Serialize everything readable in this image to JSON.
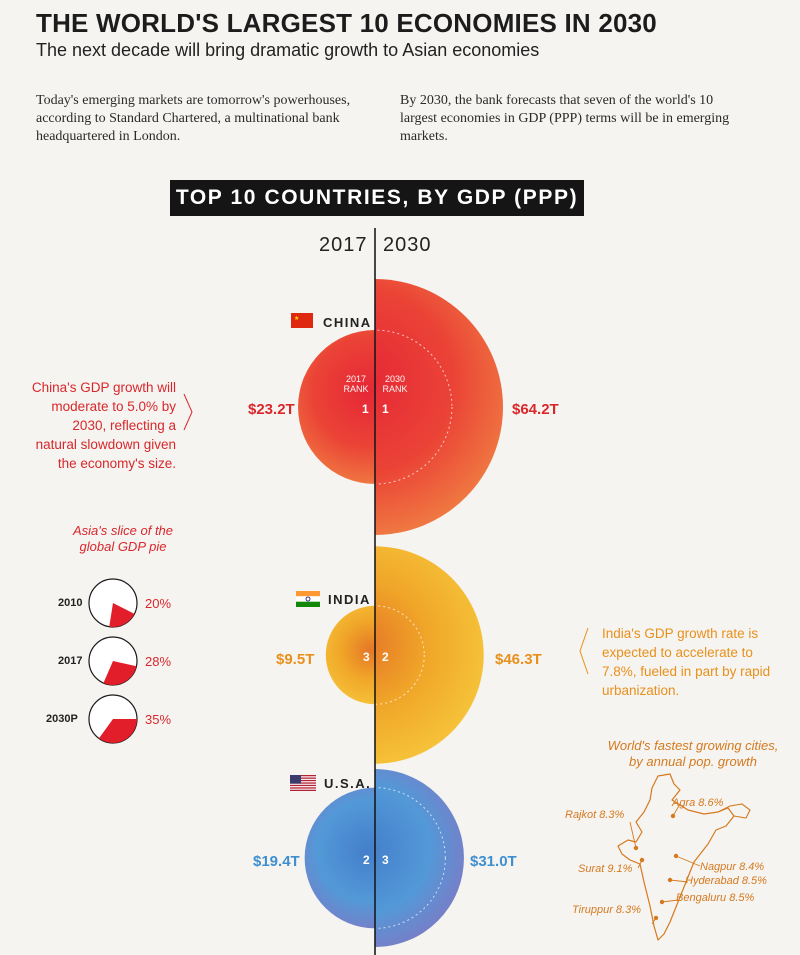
{
  "header": {
    "title": "THE WORLD'S LARGEST 10 ECONOMIES IN 2030",
    "subtitle": "The next decade will bring dramatic growth to Asian economies",
    "intro_left": "Today's emerging markets are tomorrow's powerhouses, according to Standard Chartered, a multinational bank headquartered in London.",
    "intro_right": "By 2030, the bank forecasts that seven of the world's 10 largest economies in GDP (PPP) terms will be in emerging markets."
  },
  "colors": {
    "china": "#e8352b",
    "india": "#f2a91c",
    "usa": "#4a8fd1",
    "accent_red": "#d8282c",
    "accent_orange": "#e8901c",
    "accent_blue": "#3e8fd0"
  },
  "chart_data": {
    "type": "bubble",
    "title": "TOP 10 COUNTRIES, BY GDP (PPP)",
    "years": [
      "2017",
      "2030"
    ],
    "unit": "trillion USD",
    "countries": [
      {
        "name": "CHINA",
        "gdp_2017": 23.2,
        "gdp_2030": 64.2,
        "label_2017": "$23.2T",
        "label_2030": "$64.2T",
        "rank_2017": "1",
        "rank_2030": "1",
        "flag": "china-flag-icon"
      },
      {
        "name": "INDIA",
        "gdp_2017": 9.5,
        "gdp_2030": 46.3,
        "label_2017": "$9.5T",
        "label_2030": "$46.3T",
        "rank_2017": "3",
        "rank_2030": "2",
        "flag": "india-flag-icon"
      },
      {
        "name": "U.S.A.",
        "gdp_2017": 19.4,
        "gdp_2030": 31.0,
        "label_2017": "$19.4T",
        "label_2030": "$31.0T",
        "rank_2017": "2",
        "rank_2030": "3",
        "flag": "usa-flag-icon"
      }
    ],
    "rank_labels": {
      "r2017": "2017 RANK",
      "r2030": "2030 RANK"
    }
  },
  "china_note": "China's GDP growth will moderate to 5.0% by 2030, reflecting a natural slowdown given the economy's size.",
  "india_note": "India's GDP growth rate is expected to accelerate to 7.8%, fueled in part by rapid urbanization.",
  "asia_pie": {
    "title": "Asia's slice of the global GDP pie",
    "items": [
      {
        "year": "2010",
        "pct": 20,
        "label": "20%"
      },
      {
        "year": "2017",
        "pct": 28,
        "label": "28%"
      },
      {
        "year": "2030P",
        "pct": 35,
        "label": "35%"
      }
    ]
  },
  "cities": {
    "title": "World's fastest growing cities, by annual pop. growth",
    "items": [
      {
        "name": "Agra 8.6%"
      },
      {
        "name": "Rajkot 8.3%"
      },
      {
        "name": "Nagpur 8.4%"
      },
      {
        "name": "Surat 9.1%"
      },
      {
        "name": "Hyderabad 8.5%"
      },
      {
        "name": "Bengaluru 8.5%"
      },
      {
        "name": "Tiruppur 8.3%"
      }
    ]
  }
}
